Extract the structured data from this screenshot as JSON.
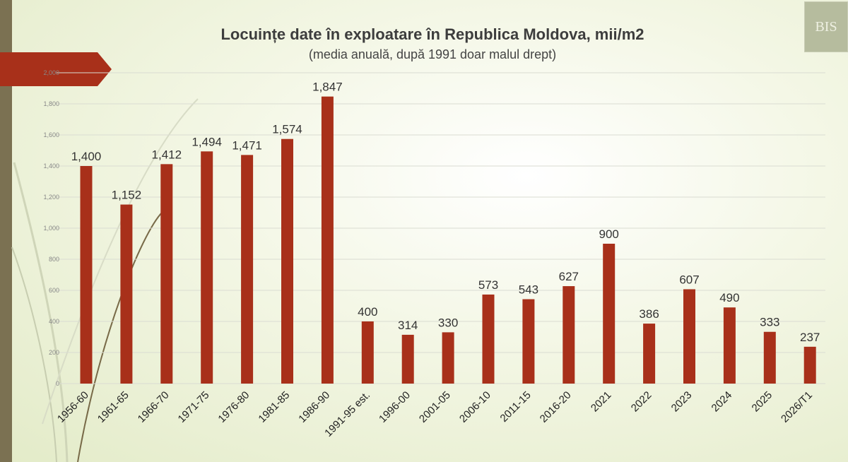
{
  "title": "Locuințe date în exploatare în Republica Moldova, mii/m2",
  "subtitle": "(media anuală, după 1991 doar malul drept)",
  "logo_text": "BIS",
  "colors": {
    "bar": "#a8301a",
    "accent": "#a8301a",
    "sidebar": "#7b7152"
  },
  "chart_data": {
    "type": "bar",
    "title": "Locuințe date în exploatare în Republica Moldova, mii/m2",
    "subtitle": "(media anuală, după 1991 doar malul drept)",
    "xlabel": "",
    "ylabel": "",
    "ylim": [
      0,
      2000
    ],
    "yticks": [
      0,
      200,
      400,
      600,
      800,
      1000,
      1200,
      1400,
      1600,
      1800,
      2000
    ],
    "ytick_labels": [
      "0",
      "200",
      "400",
      "600",
      "800",
      "1,000",
      "1,200",
      "1,400",
      "1,600",
      "1,800",
      "2,000"
    ],
    "grid": true,
    "legend": "none",
    "categories": [
      "1956-60",
      "1961-65",
      "1966-70",
      "1971-75",
      "1976-80",
      "1981-85",
      "1986-90",
      "1991-95 est.",
      "1996-00",
      "2001-05",
      "2006-10",
      "2011-15",
      "2016-20",
      "2021",
      "2022",
      "2023",
      "2024",
      "2025",
      "2026/T1"
    ],
    "values": [
      1400,
      1152,
      1412,
      1494,
      1471,
      1574,
      1847,
      400,
      314,
      330,
      573,
      543,
      627,
      900,
      386,
      607,
      490,
      333,
      237
    ],
    "data_labels": [
      "1,400",
      "1,152",
      "1,412",
      "1,494",
      "1,471",
      "1,574",
      "1,847",
      "400",
      "314",
      "330",
      "573",
      "543",
      "627",
      "900",
      "386",
      "607",
      "490",
      "333",
      "237"
    ]
  }
}
